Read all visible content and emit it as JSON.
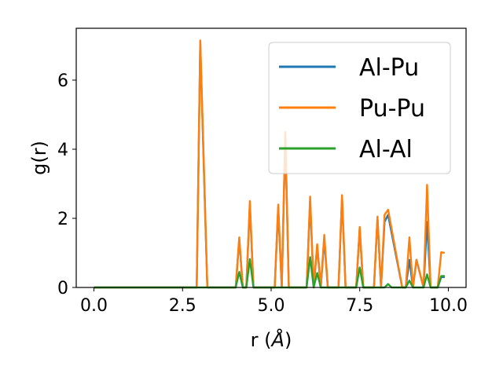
{
  "chart_data": {
    "type": "line",
    "xlabel": "r (",
    "xlabel_unit": "Å",
    "xlabel_close": ")",
    "ylabel": "g(r)",
    "xlim": [
      -0.5,
      10.5
    ],
    "ylim": [
      0,
      7.5
    ],
    "xticks": [
      0.0,
      2.5,
      5.0,
      7.5,
      10.0
    ],
    "xtick_labels": [
      "0.0",
      "2.5",
      "5.0",
      "7.5",
      "10.0"
    ],
    "yticks": [
      0,
      2,
      4,
      6
    ],
    "ytick_labels": [
      "0",
      "2",
      "4",
      "6"
    ],
    "legend_position": "top-right",
    "grid": false,
    "series": [
      {
        "name": "Al-Pu",
        "color": "#1f77b4",
        "x": [
          0,
          2.9,
          3.0,
          3.1,
          3.2,
          4.0,
          4.1,
          4.2,
          4.3,
          4.4,
          4.5,
          5.1,
          5.2,
          5.3,
          5.4,
          5.5,
          5.6,
          6.0,
          6.1,
          6.2,
          6.3,
          6.4,
          6.5,
          6.6,
          6.8,
          6.9,
          7.0,
          7.1,
          7.4,
          7.5,
          7.6,
          7.9,
          8.0,
          8.1,
          8.2,
          8.3,
          8.7,
          8.8,
          8.9,
          9.0,
          9.1,
          9.3,
          9.4,
          9.5,
          9.7,
          9.8,
          9.9
        ],
        "y": [
          0,
          0,
          7.1,
          3.5,
          0,
          0,
          1.4,
          0,
          0,
          2.4,
          0,
          0,
          2.3,
          0,
          4.4,
          0,
          0,
          0,
          2.5,
          0,
          1.2,
          0,
          1.4,
          0,
          0,
          0,
          2.6,
          0,
          0,
          1.7,
          0,
          0,
          2.0,
          0,
          1.9,
          2.1,
          0,
          0,
          0.8,
          0,
          0.8,
          0,
          1.9,
          0,
          0,
          0.3,
          0.3
        ]
      },
      {
        "name": "Pu-Pu",
        "color": "#ff7f0e",
        "x": [
          0,
          2.9,
          3.0,
          3.1,
          3.2,
          4.0,
          4.1,
          4.2,
          4.3,
          4.4,
          4.5,
          5.1,
          5.2,
          5.3,
          5.4,
          5.5,
          5.6,
          6.0,
          6.1,
          6.2,
          6.3,
          6.4,
          6.5,
          6.6,
          6.8,
          6.9,
          7.0,
          7.1,
          7.4,
          7.5,
          7.6,
          7.9,
          8.0,
          8.1,
          8.2,
          8.3,
          8.7,
          8.8,
          8.9,
          9.0,
          9.1,
          9.3,
          9.4,
          9.5,
          9.7,
          9.8,
          9.9
        ],
        "y": [
          0,
          0,
          7.15,
          3.6,
          0,
          0,
          1.45,
          0,
          0,
          2.5,
          0,
          0,
          2.4,
          0,
          4.5,
          0,
          0,
          0,
          2.63,
          0,
          1.25,
          0,
          1.52,
          0,
          0,
          0,
          2.67,
          0,
          0,
          1.75,
          0,
          0,
          2.05,
          0,
          2.1,
          2.25,
          0,
          0,
          1.45,
          0,
          0.8,
          0,
          2.97,
          0,
          0,
          1.02,
          1.0
        ]
      },
      {
        "name": "Al-Al",
        "color": "#2ca02c",
        "x": [
          0,
          4.0,
          4.1,
          4.2,
          4.3,
          4.4,
          4.5,
          6.0,
          6.1,
          6.2,
          6.3,
          6.4,
          7.4,
          7.5,
          7.6,
          8.2,
          8.3,
          8.4,
          8.8,
          8.9,
          9.0,
          9.3,
          9.4,
          9.5,
          9.7,
          9.8,
          9.9
        ],
        "y": [
          0,
          0,
          0.45,
          0,
          0,
          0.82,
          0,
          0,
          0.88,
          0,
          0.42,
          0,
          0,
          0.58,
          0,
          0,
          0.1,
          0,
          0,
          0.2,
          0,
          0,
          0.38,
          0,
          0,
          0.33,
          0.33
        ]
      }
    ]
  }
}
